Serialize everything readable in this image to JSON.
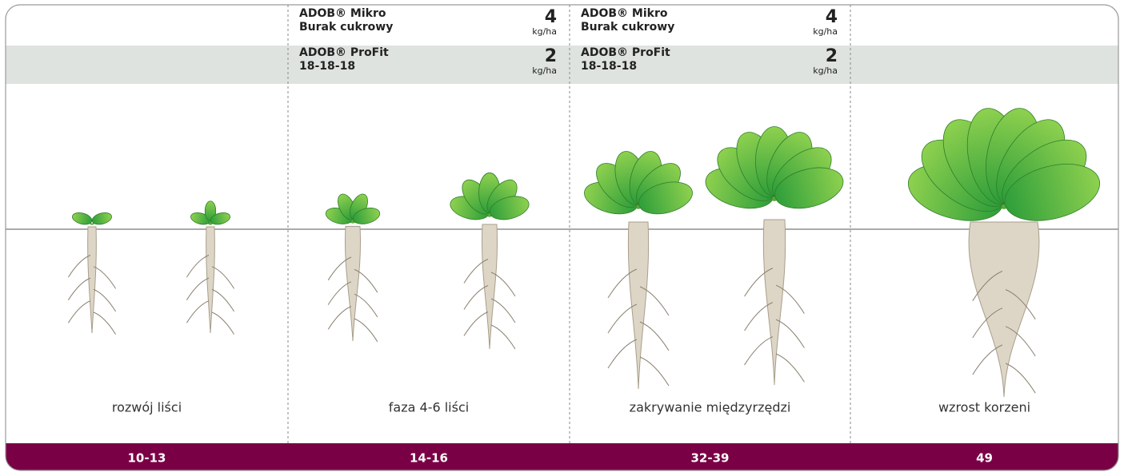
{
  "columns": [
    {
      "stage": "10-13",
      "label": "rozwój liści",
      "products": []
    },
    {
      "stage": "14-16",
      "label": "faza 4-6 liści",
      "products": [
        {
          "name": "ADOB® Mikro",
          "variant": "Burak cukrowy",
          "dose": 4,
          "unit": "kg/ha"
        },
        {
          "name": "ADOB® ProFit",
          "variant": "18-18-18",
          "dose": 2,
          "unit": "kg/ha"
        }
      ]
    },
    {
      "stage": "32-39",
      "label": "zakrywanie międzyrzędzi",
      "products": [
        {
          "name": "ADOB® Mikro",
          "variant": "Burak cukrowy",
          "dose": 4,
          "unit": "kg/ha"
        },
        {
          "name": "ADOB® ProFit",
          "variant": "18-18-18",
          "dose": 2,
          "unit": "kg/ha"
        }
      ]
    },
    {
      "stage": "49",
      "label": "wzrost korzeni",
      "products": []
    }
  ]
}
